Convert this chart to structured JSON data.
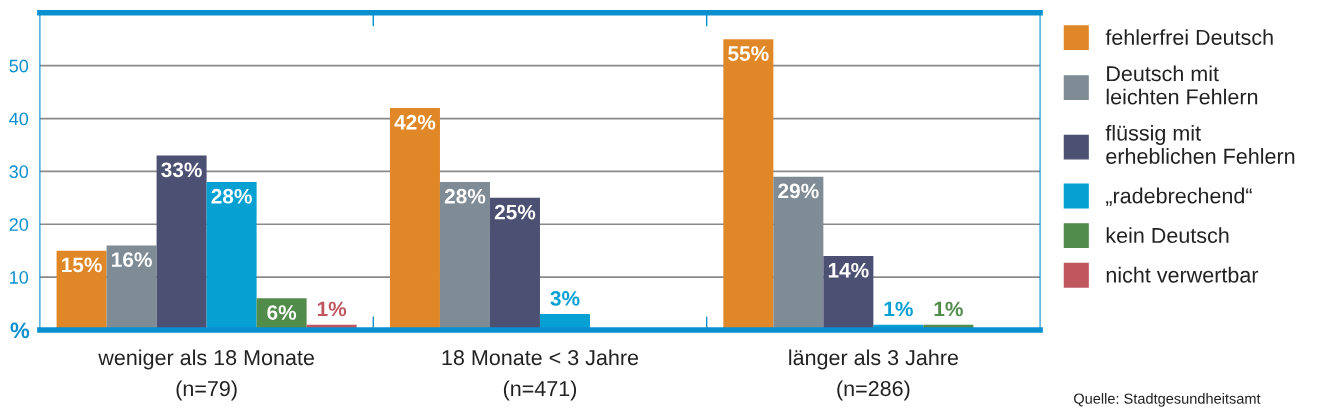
{
  "chart_data": {
    "type": "bar",
    "categories": [
      "weniger als 18 Monate\n(n=79)",
      "18 Monate < 3 Jahre\n(n=471)",
      "länger als 3 Jahre\n(n=286)"
    ],
    "series": [
      {
        "name": "fehlerfrei Deutsch",
        "color": "#e08828",
        "values": [
          15,
          42,
          55
        ],
        "value_labels": [
          "15%",
          "42%",
          "55%"
        ]
      },
      {
        "name": "Deutsch mit\nleichten Fehlern",
        "color": "#7f8c95",
        "values": [
          16,
          28,
          29
        ],
        "value_labels": [
          "16%",
          "28%",
          "29%"
        ]
      },
      {
        "name": "flüssig mit\nerheblichen Fehlern",
        "color": "#4c5173",
        "values": [
          33,
          25,
          14
        ],
        "value_labels": [
          "33%",
          "25%",
          "14%"
        ]
      },
      {
        "name": "„radebrechend“",
        "color": "#06a0d3",
        "values": [
          28,
          3,
          1
        ],
        "value_labels": [
          "28%",
          "3%",
          "1%"
        ]
      },
      {
        "name": "kein Deutsch",
        "color": "#518c4a",
        "values": [
          6,
          null,
          1
        ],
        "value_labels": [
          "6%",
          null,
          "1%"
        ]
      },
      {
        "name": "nicht verwertbar",
        "color": "#c0565e",
        "values": [
          1,
          null,
          null
        ],
        "value_labels": [
          "1%",
          null,
          null
        ]
      }
    ],
    "ylabel": "%",
    "ylim": [
      0,
      60
    ],
    "yticks": [
      10,
      20,
      30,
      40,
      50
    ],
    "grid": "y",
    "legend": "right",
    "annotations": [
      "Quelle: Stadtgesundheitsamt"
    ]
  }
}
